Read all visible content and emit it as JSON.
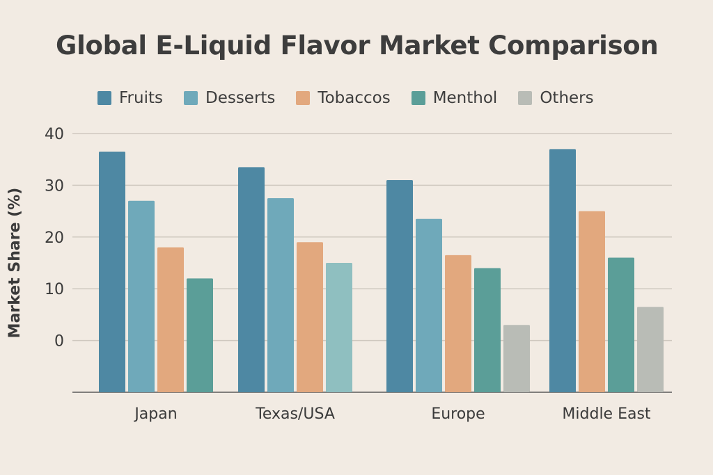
{
  "chart_data": {
    "type": "bar",
    "title": "Global E-Liquid Flavor Market Comparison",
    "xlabel": "",
    "ylabel": "Market Share (%)",
    "ylim": [
      -10,
      40
    ],
    "yticks": [
      0,
      10,
      20,
      30,
      40
    ],
    "grid": true,
    "legend_position": "top",
    "groups": [
      {
        "category": "Japan",
        "bars": [
          {
            "series": "Fruits",
            "value": 36.5
          },
          {
            "series": "Desserts",
            "value": 27
          },
          {
            "series": "Tobaccos",
            "value": 18
          },
          {
            "series": "Menthol",
            "value": 12
          }
        ]
      },
      {
        "category": "Texas/USA",
        "bars": [
          {
            "series": "Fruits",
            "value": 33.5
          },
          {
            "series": "Desserts",
            "value": 27.5
          },
          {
            "series": "Tobaccos",
            "value": 19
          },
          {
            "series": "Others",
            "value": 15
          }
        ]
      },
      {
        "category": "Europe",
        "bars": [
          {
            "series": "Fruits",
            "value": 31
          },
          {
            "series": "Desserts",
            "value": 23.5
          },
          {
            "series": "Tobaccos",
            "value": 16.5
          },
          {
            "series": "Menthol",
            "value": 14
          },
          {
            "series": "Others",
            "value": 3
          }
        ]
      },
      {
        "category": "Middle East",
        "bars": [
          {
            "series": "Fruits",
            "value": 37
          },
          {
            "series": "Tobaccos",
            "value": 25
          },
          {
            "series": "Menthol",
            "value": 16
          },
          {
            "series": "Others",
            "value": 6.5
          }
        ]
      }
    ],
    "series": [
      {
        "name": "Fruits",
        "color": "#4e88a3"
      },
      {
        "name": "Desserts",
        "color": "#6fa9ba"
      },
      {
        "name": "Tobaccos",
        "color": "#e2a87e"
      },
      {
        "name": "Menthol",
        "color": "#5b9e98"
      },
      {
        "name": "Others",
        "color": "#b9bcb6"
      }
    ],
    "special_colors": {
      "Texas/USA:Others": "#8fbfc0"
    }
  }
}
